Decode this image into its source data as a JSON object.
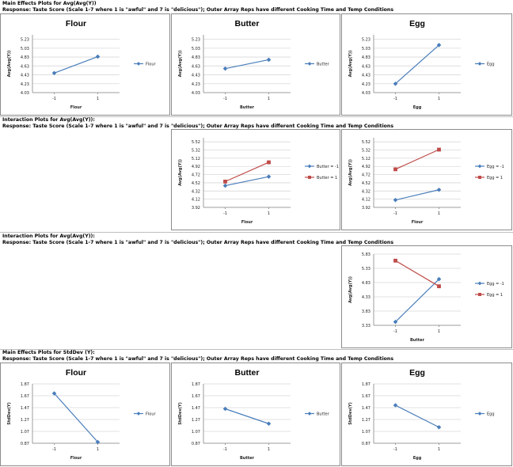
{
  "headers": {
    "main_effects_avg_title": "Main Effects Plots for Avg(Avg(Y))",
    "main_effects_avg_sub": "Response: Taste Score (Scale 1-7 where 1 is \"awful\" and 7 is \"delicious\"); Outer Array Reps have different Cooking Time and Temp Conditions",
    "interaction_1_title": "Interaction Plots for Avg(Avg(Y)):",
    "interaction_1_sub": "Response: Taste Score (Scale 1-7 where 1 is \"awful\" and 7 is \"delicious\"); Outer Array Reps have different Cooking Time and Temp Conditions",
    "interaction_2_title": "Interaction Plots for Avg(Avg(Y)):",
    "interaction_2_sub": "Response: Taste Score (Scale 1-7 where 1 is \"awful\" and 7 is \"delicious\"); Outer Array Reps have different Cooking Time and Temp Conditions",
    "main_effects_sd_title": "Main Effects Plots for StdDev (Y):",
    "main_effects_sd_sub": "Response: Taste Score (Scale 1-7 where 1 is \"awful\" and 7 is \"delicious\"); Outer Array Reps have different Cooking Time and Temp Conditions"
  },
  "colors": {
    "blue": "#4a7ebb",
    "red": "#be4b48",
    "grid": "#d9d9d9",
    "axis": "#868686"
  },
  "chart_data": [
    {
      "id": "me-avg-flour",
      "type": "line",
      "title": "Flour",
      "xlabel": "Flour",
      "ylabel": "Avg(Avg(Y))",
      "categories": [
        "-1",
        "1"
      ],
      "yticks": [
        "4.03",
        "4.23",
        "4.43",
        "4.63",
        "4.83",
        "5.03",
        "5.23"
      ],
      "ylim": [
        4.03,
        5.33
      ],
      "series": [
        {
          "name": "Flour",
          "color": "blue",
          "marker": "diamond",
          "values": [
            4.47,
            4.84
          ]
        }
      ]
    },
    {
      "id": "me-avg-butter",
      "type": "line",
      "title": "Butter",
      "xlabel": "Butter",
      "ylabel": "Avg(Avg(Y))",
      "categories": [
        "-1",
        "1"
      ],
      "yticks": [
        "4.03",
        "4.23",
        "4.43",
        "4.63",
        "4.83",
        "5.03",
        "5.23"
      ],
      "ylim": [
        4.03,
        5.33
      ],
      "series": [
        {
          "name": "Butter",
          "color": "blue",
          "marker": "diamond",
          "values": [
            4.57,
            4.77
          ]
        }
      ]
    },
    {
      "id": "me-avg-egg",
      "type": "line",
      "title": "Egg",
      "xlabel": "Egg",
      "ylabel": "Avg(Avg(Y))",
      "categories": [
        "-1",
        "1"
      ],
      "yticks": [
        "4.03",
        "4.23",
        "4.43",
        "4.63",
        "4.83",
        "5.03",
        "5.23"
      ],
      "ylim": [
        4.03,
        5.33
      ],
      "series": [
        {
          "name": "Egg",
          "color": "blue",
          "marker": "diamond",
          "values": [
            4.23,
            5.1
          ]
        }
      ]
    },
    {
      "id": "int-flour-butter",
      "type": "line",
      "title": "",
      "xlabel": "Flour",
      "ylabel": "Avg(Avg(Y))",
      "categories": [
        "-1",
        "1"
      ],
      "yticks": [
        "3.92",
        "4.12",
        "4.32",
        "4.52",
        "4.72",
        "4.92",
        "5.12",
        "5.32",
        "5.52"
      ],
      "ylim": [
        3.92,
        5.62
      ],
      "series": [
        {
          "name": "Butter = -1",
          "color": "blue",
          "marker": "diamond",
          "values": [
            4.45,
            4.67
          ]
        },
        {
          "name": "Butter = 1",
          "color": "red",
          "marker": "square",
          "values": [
            4.55,
            5.02
          ]
        }
      ]
    },
    {
      "id": "int-flour-egg",
      "type": "line",
      "title": "",
      "xlabel": "Flour",
      "ylabel": "Avg(Avg(Y))",
      "categories": [
        "-1",
        "1"
      ],
      "yticks": [
        "3.92",
        "4.12",
        "4.32",
        "4.52",
        "4.72",
        "4.92",
        "5.12",
        "5.32",
        "5.52"
      ],
      "ylim": [
        3.92,
        5.62
      ],
      "series": [
        {
          "name": "Egg = -1",
          "color": "blue",
          "marker": "diamond",
          "values": [
            4.1,
            4.35
          ]
        },
        {
          "name": "Egg = 1",
          "color": "red",
          "marker": "square",
          "values": [
            4.85,
            5.33
          ]
        }
      ]
    },
    {
      "id": "int-butter-egg",
      "type": "line",
      "title": "",
      "xlabel": "Butter",
      "ylabel": "Avg(Avg(Y))",
      "categories": [
        "-1",
        "1"
      ],
      "yticks": [
        "3.33",
        "3.83",
        "4.33",
        "4.83",
        "5.33",
        "5.83"
      ],
      "ylim": [
        3.33,
        5.83
      ],
      "series": [
        {
          "name": "Egg = -1",
          "color": "blue",
          "marker": "diamond",
          "values": [
            3.45,
            4.95
          ]
        },
        {
          "name": "Egg = 1",
          "color": "red",
          "marker": "square",
          "values": [
            5.6,
            4.7
          ]
        }
      ]
    },
    {
      "id": "me-sd-flour",
      "type": "line",
      "title": "Flour",
      "xlabel": "Flour",
      "ylabel": "StdDev(Y)",
      "categories": [
        "-1",
        "1"
      ],
      "yticks": [
        "0.87",
        "1.07",
        "1.27",
        "1.47",
        "1.67",
        "1.87"
      ],
      "ylim": [
        0.87,
        1.87
      ],
      "series": [
        {
          "name": "Flour",
          "color": "blue",
          "marker": "diamond",
          "values": [
            1.71,
            0.89
          ]
        }
      ]
    },
    {
      "id": "me-sd-butter",
      "type": "line",
      "title": "Butter",
      "xlabel": "Butter",
      "ylabel": "StdDev(Y)",
      "categories": [
        "-1",
        "1"
      ],
      "yticks": [
        "0.87",
        "1.07",
        "1.27",
        "1.47",
        "1.67",
        "1.87"
      ],
      "ylim": [
        0.87,
        1.87
      ],
      "series": [
        {
          "name": "Butter",
          "color": "blue",
          "marker": "diamond",
          "values": [
            1.45,
            1.2
          ]
        }
      ]
    },
    {
      "id": "me-sd-egg",
      "type": "line",
      "title": "Egg",
      "xlabel": "Egg",
      "ylabel": "StdDev(Y)",
      "categories": [
        "-1",
        "1"
      ],
      "yticks": [
        "0.87",
        "1.07",
        "1.27",
        "1.47",
        "1.67",
        "1.87"
      ],
      "ylim": [
        0.87,
        1.87
      ],
      "series": [
        {
          "name": "Egg",
          "color": "blue",
          "marker": "diamond",
          "values": [
            1.51,
            1.14
          ]
        }
      ]
    }
  ]
}
